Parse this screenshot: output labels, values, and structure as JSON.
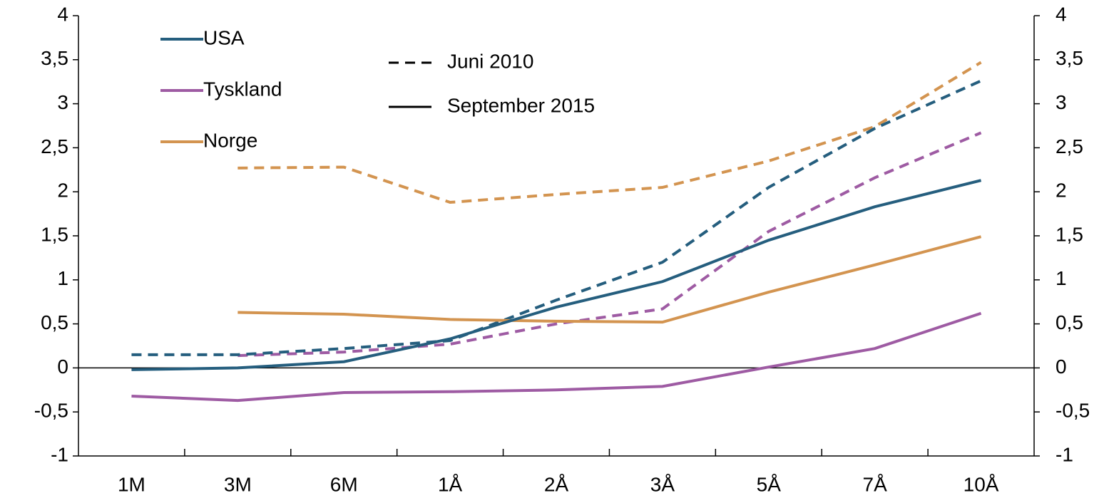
{
  "chart_data": {
    "type": "line",
    "categories": [
      "1M",
      "3M",
      "6M",
      "1Å",
      "2Å",
      "3Å",
      "5Å",
      "7Å",
      "10Å"
    ],
    "countries": [
      {
        "name": "USA",
        "color": "#255e7e"
      },
      {
        "name": "Tyskland",
        "color": "#9e5ba3"
      },
      {
        "name": "Norge",
        "color": "#d39450"
      }
    ],
    "line_styles": [
      {
        "name": "Juni 2010",
        "dashed": true
      },
      {
        "name": "September 2015",
        "dashed": false
      }
    ],
    "series": [
      {
        "country": "Norge",
        "style": "Juni 2010",
        "values": [
          null,
          2.27,
          2.28,
          1.88,
          1.97,
          2.05,
          2.35,
          2.74,
          3.47
        ]
      },
      {
        "country": "Tyskland",
        "style": "Juni 2010",
        "values": [
          null,
          0.14,
          0.18,
          0.27,
          0.5,
          0.67,
          1.55,
          2.16,
          2.67
        ]
      },
      {
        "country": "USA",
        "style": "Juni 2010",
        "values": [
          0.15,
          0.15,
          0.22,
          0.31,
          0.77,
          1.2,
          2.05,
          2.72,
          3.26
        ]
      },
      {
        "country": "Norge",
        "style": "September 2015",
        "values": [
          null,
          0.63,
          0.61,
          0.55,
          0.53,
          0.52,
          0.86,
          1.17,
          1.49
        ]
      },
      {
        "country": "Tyskland",
        "style": "September 2015",
        "values": [
          -0.32,
          -0.37,
          -0.28,
          -0.27,
          -0.25,
          -0.21,
          0.01,
          0.22,
          0.62
        ]
      },
      {
        "country": "USA",
        "style": "September 2015",
        "values": [
          -0.02,
          0,
          0.07,
          0.33,
          0.69,
          0.98,
          1.45,
          1.83,
          2.13
        ]
      }
    ],
    "ylim": [
      -1,
      4
    ],
    "yticks": [
      -1,
      {
        "value": -0.5,
        "label": "-0,5"
      },
      0,
      {
        "value": 0.5,
        "label": "0,5"
      },
      1,
      {
        "value": 1.5,
        "label": "1,5"
      },
      2,
      {
        "value": 2.5,
        "label": "2,5"
      },
      3,
      {
        "value": 3.5,
        "label": "3,5"
      },
      4
    ],
    "y2lim": [
      -1,
      4
    ],
    "y2ticks": [
      -1,
      {
        "value": -0.5,
        "label": "-0,5"
      },
      0,
      {
        "value": 0.5,
        "label": "0,5"
      },
      1,
      {
        "value": 1.5,
        "label": "1,5"
      },
      2,
      {
        "value": 2.5,
        "label": "2,5"
      },
      3,
      {
        "value": 3.5,
        "label": "3,5"
      },
      4
    ]
  }
}
